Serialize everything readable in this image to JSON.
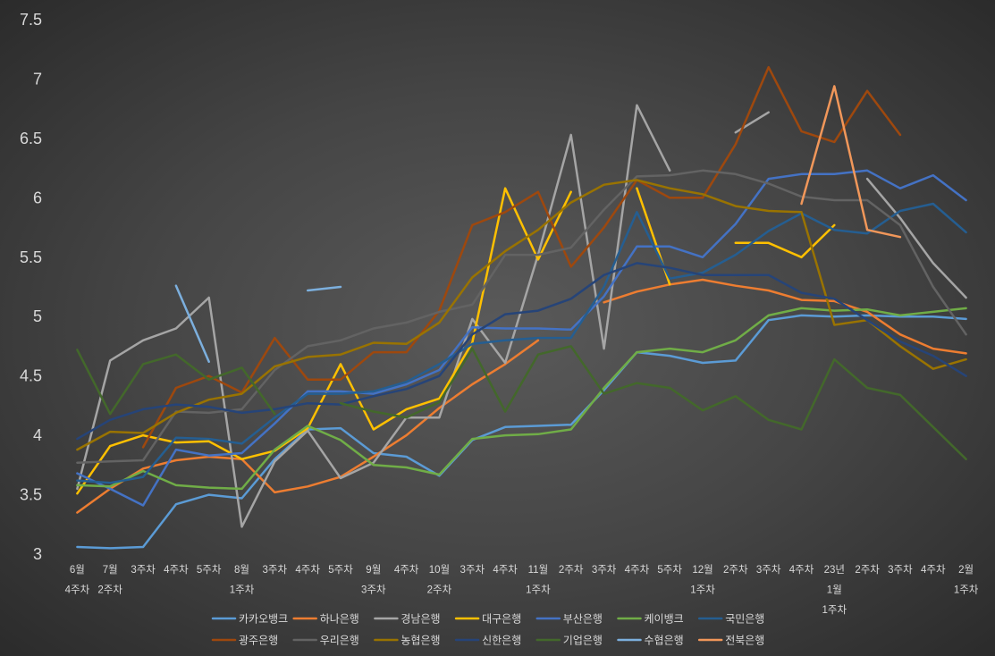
{
  "chart_data": {
    "type": "line",
    "ylim": [
      3,
      7.5
    ],
    "yticks": [
      3,
      3.5,
      4,
      4.5,
      5,
      5.5,
      6,
      6.5,
      7,
      7.5
    ],
    "grid": false,
    "legend_position": "bottom",
    "categories": [
      [
        "6월",
        "4주차"
      ],
      [
        "7월",
        "2주차"
      ],
      [
        "3주차"
      ],
      [
        "4주차"
      ],
      [
        "5주차"
      ],
      [
        "8월",
        "1주차"
      ],
      [
        "3주차"
      ],
      [
        "4주차"
      ],
      [
        "5주차"
      ],
      [
        "9월",
        "3주차"
      ],
      [
        "4주차"
      ],
      [
        "10월",
        "2주차"
      ],
      [
        "3주차"
      ],
      [
        "4주차"
      ],
      [
        "11월",
        "1주차"
      ],
      [
        "2주차"
      ],
      [
        "3주차"
      ],
      [
        "4주차"
      ],
      [
        "5주차"
      ],
      [
        "12월",
        "1주차"
      ],
      [
        "2주차"
      ],
      [
        "3주차"
      ],
      [
        "4주차"
      ],
      [
        "23년",
        "1월",
        "1주차"
      ],
      [
        "2주차"
      ],
      [
        "3주차"
      ],
      [
        "4주차"
      ],
      [
        "2월",
        "1주차"
      ]
    ],
    "series": [
      {
        "name": "카카오뱅크",
        "color": "#5B9BD5",
        "values": [
          3.06,
          3.05,
          3.06,
          3.42,
          3.5,
          3.47,
          3.8,
          4.05,
          4.06,
          3.85,
          3.82,
          3.66,
          3.96,
          4.07,
          4.08,
          4.09,
          4.38,
          4.7,
          4.67,
          4.61,
          4.63,
          4.97,
          5.01,
          5.0,
          5.01,
          5.0,
          5.0,
          4.98
        ]
      },
      {
        "name": "하나은행",
        "color": "#ED7D31",
        "values": [
          3.35,
          3.55,
          3.72,
          3.79,
          3.82,
          3.8,
          3.52,
          3.57,
          3.65,
          3.82,
          4.0,
          4.23,
          4.43,
          4.6,
          4.8,
          null,
          5.12,
          5.21,
          5.27,
          5.31,
          5.26,
          5.22,
          5.14,
          5.13,
          5.04,
          4.85,
          4.73,
          4.69
        ]
      },
      {
        "name": "경남은행",
        "color": "#A5A5A5",
        "values": [
          3.55,
          4.63,
          4.8,
          4.9,
          5.16,
          3.23,
          3.78,
          4.04,
          3.64,
          3.77,
          4.15,
          4.15,
          4.98,
          4.61,
          5.52,
          6.53,
          4.73,
          6.78,
          6.23,
          null,
          6.55,
          6.72,
          null,
          null,
          6.16,
          5.83,
          5.45,
          5.16
        ]
      },
      {
        "name": "대구은행",
        "color": "#FFC000",
        "values": [
          3.51,
          3.91,
          4.0,
          3.94,
          3.95,
          3.8,
          3.87,
          4.06,
          4.6,
          4.05,
          4.22,
          4.31,
          4.78,
          6.08,
          5.48,
          6.05,
          null,
          6.08,
          5.27,
          null,
          5.62,
          5.62,
          5.5,
          5.77,
          null,
          null,
          null,
          null
        ]
      },
      {
        "name": "부산은행",
        "color": "#4472C4",
        "values": [
          3.68,
          3.55,
          3.41,
          3.88,
          3.83,
          3.85,
          4.1,
          4.37,
          4.37,
          4.35,
          4.43,
          4.55,
          4.91,
          4.9,
          4.9,
          4.89,
          5.17,
          5.59,
          5.59,
          5.5,
          5.78,
          6.16,
          6.2,
          6.2,
          6.23,
          6.08,
          6.19,
          5.98
        ]
      },
      {
        "name": "케이뱅크",
        "color": "#70AD47",
        "values": [
          3.58,
          3.57,
          3.7,
          3.58,
          3.56,
          3.55,
          3.88,
          4.08,
          3.96,
          3.75,
          3.73,
          3.67,
          3.97,
          4.0,
          4.01,
          4.05,
          4.4,
          4.7,
          4.73,
          4.7,
          4.8,
          5.01,
          5.07,
          5.05,
          5.06,
          5.01,
          5.04,
          5.07
        ]
      },
      {
        "name": "국민은행",
        "color": "#255E91",
        "values": [
          3.62,
          3.6,
          3.65,
          3.98,
          3.97,
          3.93,
          4.15,
          4.35,
          4.35,
          4.37,
          4.45,
          4.6,
          4.77,
          4.8,
          4.82,
          4.82,
          5.25,
          5.88,
          5.32,
          5.37,
          5.52,
          5.72,
          5.87,
          5.73,
          5.7,
          5.89,
          5.95,
          5.71
        ]
      },
      {
        "name": "광주은행",
        "color": "#9E480E",
        "values": [
          null,
          null,
          3.9,
          4.4,
          4.5,
          4.36,
          4.82,
          4.47,
          4.47,
          4.7,
          4.7,
          5.05,
          5.77,
          5.88,
          6.05,
          5.42,
          5.75,
          6.15,
          6.0,
          6.0,
          6.45,
          7.1,
          6.56,
          6.47,
          6.9,
          6.53,
          null,
          null
        ]
      },
      {
        "name": "우리은행",
        "color": "#636363",
        "values": [
          3.77,
          3.78,
          3.79,
          4.2,
          4.19,
          4.22,
          4.55,
          4.75,
          4.8,
          4.9,
          4.95,
          5.04,
          5.1,
          5.52,
          5.52,
          5.58,
          5.9,
          6.18,
          6.19,
          6.23,
          6.2,
          6.12,
          6.01,
          5.98,
          5.98,
          5.77,
          5.25,
          4.85
        ]
      },
      {
        "name": "농협은행",
        "color": "#997300",
        "values": [
          3.88,
          4.03,
          4.02,
          4.19,
          4.3,
          4.35,
          4.58,
          4.66,
          4.68,
          4.78,
          4.77,
          4.95,
          5.33,
          5.55,
          5.73,
          5.96,
          6.11,
          6.15,
          6.08,
          6.03,
          5.93,
          5.89,
          5.88,
          4.93,
          4.97,
          4.75,
          4.56,
          4.64
        ]
      },
      {
        "name": "신한은행",
        "color": "#264478",
        "values": [
          3.97,
          4.13,
          4.22,
          4.26,
          4.24,
          4.19,
          4.22,
          4.27,
          4.26,
          4.33,
          4.39,
          4.5,
          4.85,
          5.02,
          5.05,
          5.15,
          5.35,
          5.45,
          5.41,
          5.35,
          5.35,
          5.35,
          5.2,
          5.15,
          4.97,
          4.79,
          4.67,
          4.5
        ]
      },
      {
        "name": "기업은행",
        "color": "#43682B",
        "values": [
          4.72,
          4.18,
          4.6,
          4.68,
          4.47,
          4.57,
          4.18,
          null,
          4.27,
          4.2,
          4.15,
          4.28,
          4.73,
          4.2,
          4.68,
          4.75,
          4.35,
          4.44,
          4.4,
          4.21,
          4.33,
          4.13,
          4.05,
          4.64,
          4.4,
          4.34,
          4.07,
          3.8
        ]
      },
      {
        "name": "수협은행",
        "color": "#7CAFDD",
        "values": [
          null,
          null,
          null,
          5.26,
          4.62,
          null,
          null,
          5.22,
          5.25,
          null,
          null,
          null,
          null,
          null,
          null,
          null,
          null,
          null,
          null,
          null,
          null,
          null,
          null,
          null,
          null,
          null,
          null,
          null
        ]
      },
      {
        "name": "전북은행",
        "color": "#F1975A",
        "values": [
          null,
          null,
          null,
          null,
          null,
          null,
          null,
          null,
          null,
          null,
          null,
          null,
          null,
          null,
          null,
          null,
          null,
          null,
          null,
          null,
          null,
          null,
          5.95,
          6.94,
          5.73,
          5.67,
          null,
          null
        ]
      }
    ]
  }
}
